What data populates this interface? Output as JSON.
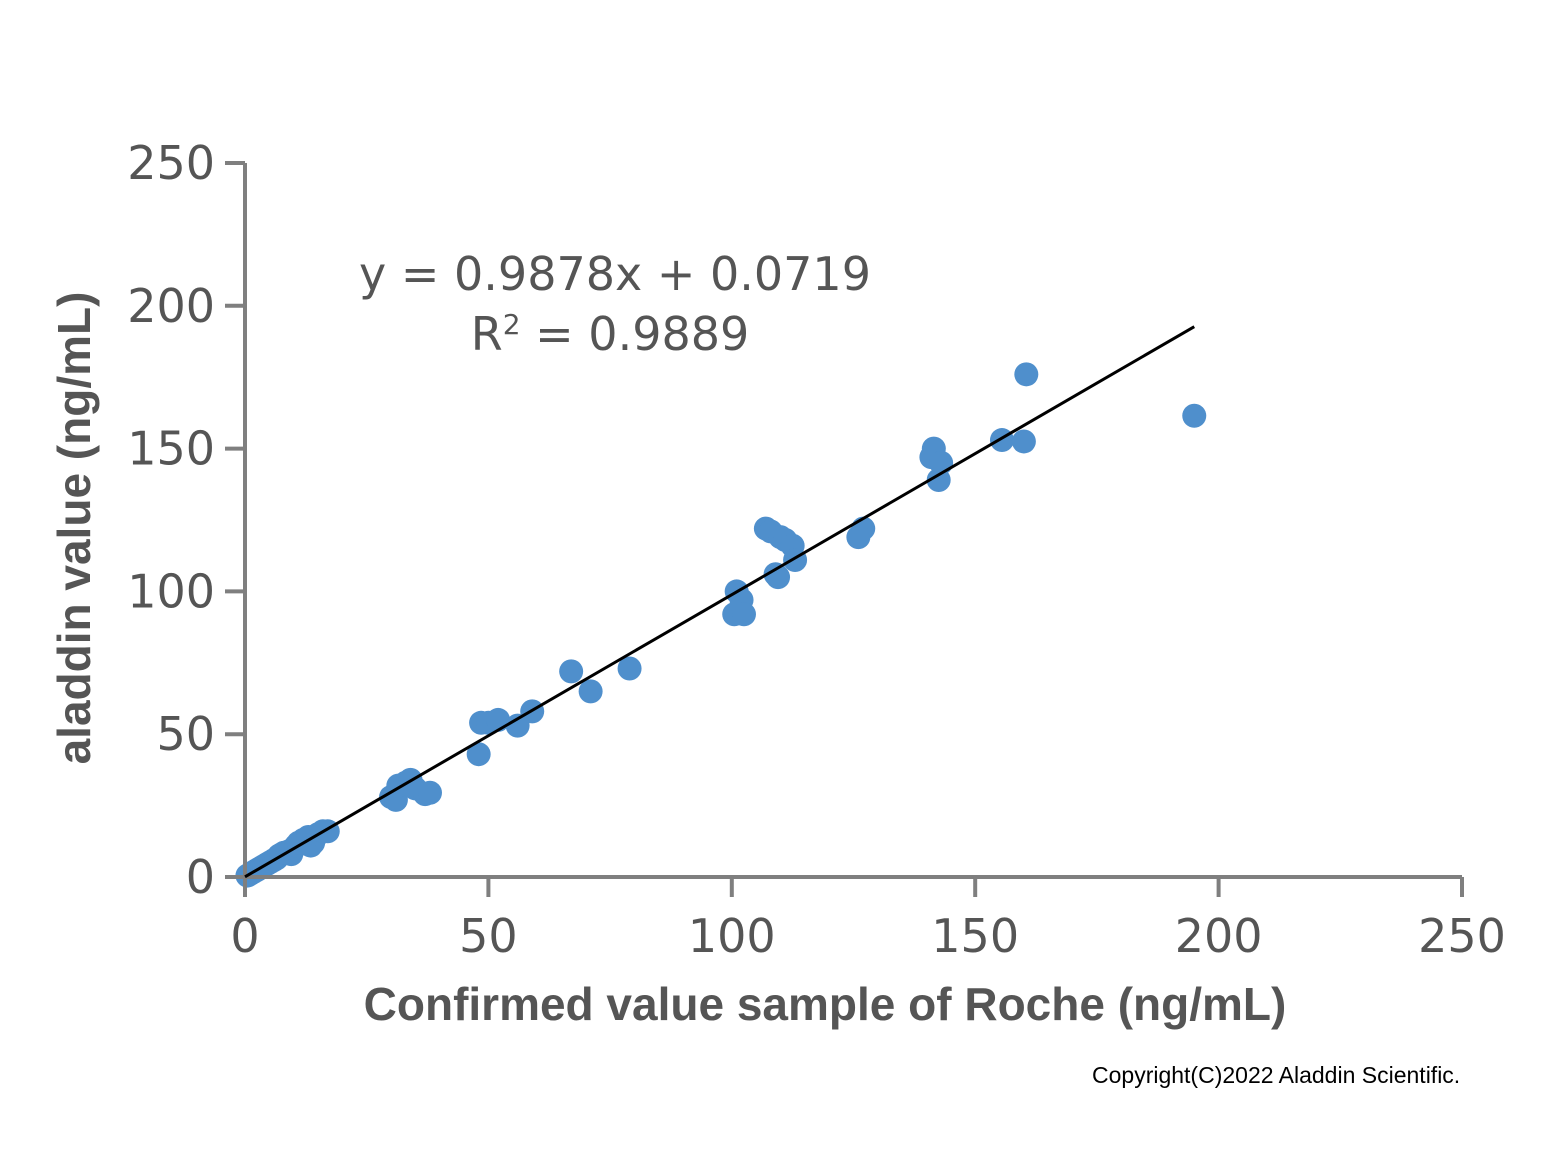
{
  "copyright": "Copyright(C)2022 Aladdin Scientific.",
  "colors": {
    "points": "#4f8fcc",
    "line": "#000000",
    "axis": "#7f7f7f",
    "text": "#555555"
  },
  "chart_data": {
    "type": "scatter",
    "title": "",
    "xlabel": "Confirmed value sample of Roche (ng/mL)",
    "ylabel": "aladdin value (ng/mL)",
    "xlim": [
      0,
      250
    ],
    "ylim": [
      0,
      250
    ],
    "xticks": [
      "0",
      "50",
      "100",
      "150",
      "200",
      "250"
    ],
    "yticks": [
      "0",
      "50",
      "100",
      "150",
      "200",
      "250"
    ],
    "grid": false,
    "equation": "y = 0.9878x + 0.0719",
    "r2_label": "R",
    "r2_sup": "2",
    "r2_value": " = 0.9889",
    "trendline": {
      "slope": 0.9878,
      "intercept": 0.0719,
      "x_range": [
        0,
        195
      ]
    },
    "series": [
      {
        "points": [
          [
            0.5,
            0.5
          ],
          [
            1,
            1
          ],
          [
            1.5,
            1.5
          ],
          [
            2,
            2
          ],
          [
            2.5,
            2.5
          ],
          [
            3,
            3
          ],
          [
            3.5,
            3.5
          ],
          [
            4,
            4
          ],
          [
            4.5,
            4.5
          ],
          [
            5,
            5
          ],
          [
            5.5,
            5.5
          ],
          [
            6,
            6
          ],
          [
            6.5,
            6.5
          ],
          [
            7,
            7.5
          ],
          [
            7.5,
            8
          ],
          [
            8,
            8.5
          ],
          [
            9,
            9
          ],
          [
            9.5,
            8
          ],
          [
            10,
            10
          ],
          [
            10.5,
            11
          ],
          [
            11,
            12
          ],
          [
            12,
            13
          ],
          [
            13,
            14
          ],
          [
            13.5,
            11
          ],
          [
            14,
            12
          ],
          [
            15,
            15
          ],
          [
            16,
            16
          ],
          [
            17,
            16
          ],
          [
            30,
            28
          ],
          [
            31,
            27
          ],
          [
            31.5,
            32
          ],
          [
            33,
            33
          ],
          [
            34,
            34
          ],
          [
            35,
            31
          ],
          [
            37,
            29
          ],
          [
            38,
            29.5
          ],
          [
            48,
            43
          ],
          [
            48.5,
            54
          ],
          [
            50,
            54
          ],
          [
            52,
            55
          ],
          [
            56,
            53
          ],
          [
            59,
            58
          ],
          [
            67,
            72
          ],
          [
            71,
            65
          ],
          [
            79,
            73
          ],
          [
            100.5,
            92
          ],
          [
            101,
            100
          ],
          [
            102,
            97
          ],
          [
            102.5,
            92
          ],
          [
            107,
            122
          ],
          [
            108,
            121
          ],
          [
            109,
            106
          ],
          [
            109.5,
            105
          ],
          [
            110,
            119
          ],
          [
            111,
            118
          ],
          [
            112.5,
            116
          ],
          [
            113,
            111
          ],
          [
            126,
            119
          ],
          [
            127,
            122
          ],
          [
            141,
            147
          ],
          [
            141.5,
            150
          ],
          [
            142.5,
            139
          ],
          [
            143,
            145
          ],
          [
            155.5,
            153
          ],
          [
            160,
            152.5
          ],
          [
            160.5,
            176
          ],
          [
            195,
            161.5
          ]
        ]
      }
    ]
  }
}
